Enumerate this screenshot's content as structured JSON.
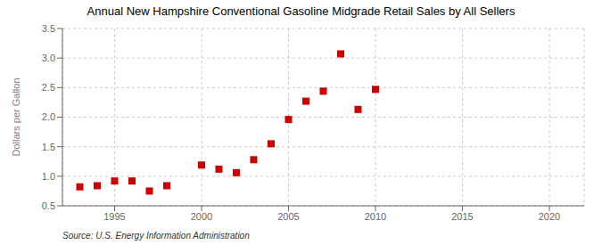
{
  "chart_data": {
    "type": "scatter",
    "title": "Annual New Hampshire Conventional Gasoline Midgrade Retail Sales by All Sellers",
    "ylabel": "Dollars per Gallon",
    "source": "Source: U.S. Energy Information Administration",
    "x": [
      1993,
      1994,
      1995,
      1996,
      1997,
      1998,
      2000,
      2001,
      2002,
      2003,
      2004,
      2005,
      2006,
      2007,
      2008,
      2009,
      2010
    ],
    "values": [
      0.82,
      0.84,
      0.92,
      0.92,
      0.75,
      0.84,
      1.19,
      1.12,
      1.06,
      1.28,
      1.55,
      1.96,
      2.27,
      2.44,
      3.07,
      2.13,
      2.47
    ],
    "color": "#cc0000",
    "marker": "square",
    "xlim": [
      1992,
      2022
    ],
    "ylim": [
      0.5,
      3.5
    ],
    "xticks": [
      1995,
      2000,
      2005,
      2010,
      2015,
      2020
    ],
    "yticks": [
      0.5,
      {
        "value": 1,
        "label": "1.0"
      },
      1.5,
      {
        "value": 2,
        "label": "2.0"
      },
      2.5,
      {
        "value": 3,
        "label": "3.0"
      },
      3.5
    ],
    "grid": true
  }
}
